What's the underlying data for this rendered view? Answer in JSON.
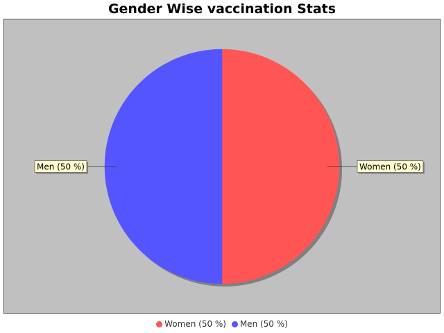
{
  "chart_data": {
    "type": "pie",
    "title": "Gender Wise vaccination Stats",
    "slices": [
      {
        "name": "Women",
        "value": 50,
        "label": "Women (50 %)",
        "color": "#ff5555"
      },
      {
        "name": "Men",
        "value": 50,
        "label": "Men (50 %)",
        "color": "#5555ff"
      }
    ],
    "legend_position": "bottom",
    "background": "#c0c0c0",
    "label_box_color": "#ffffcc"
  }
}
